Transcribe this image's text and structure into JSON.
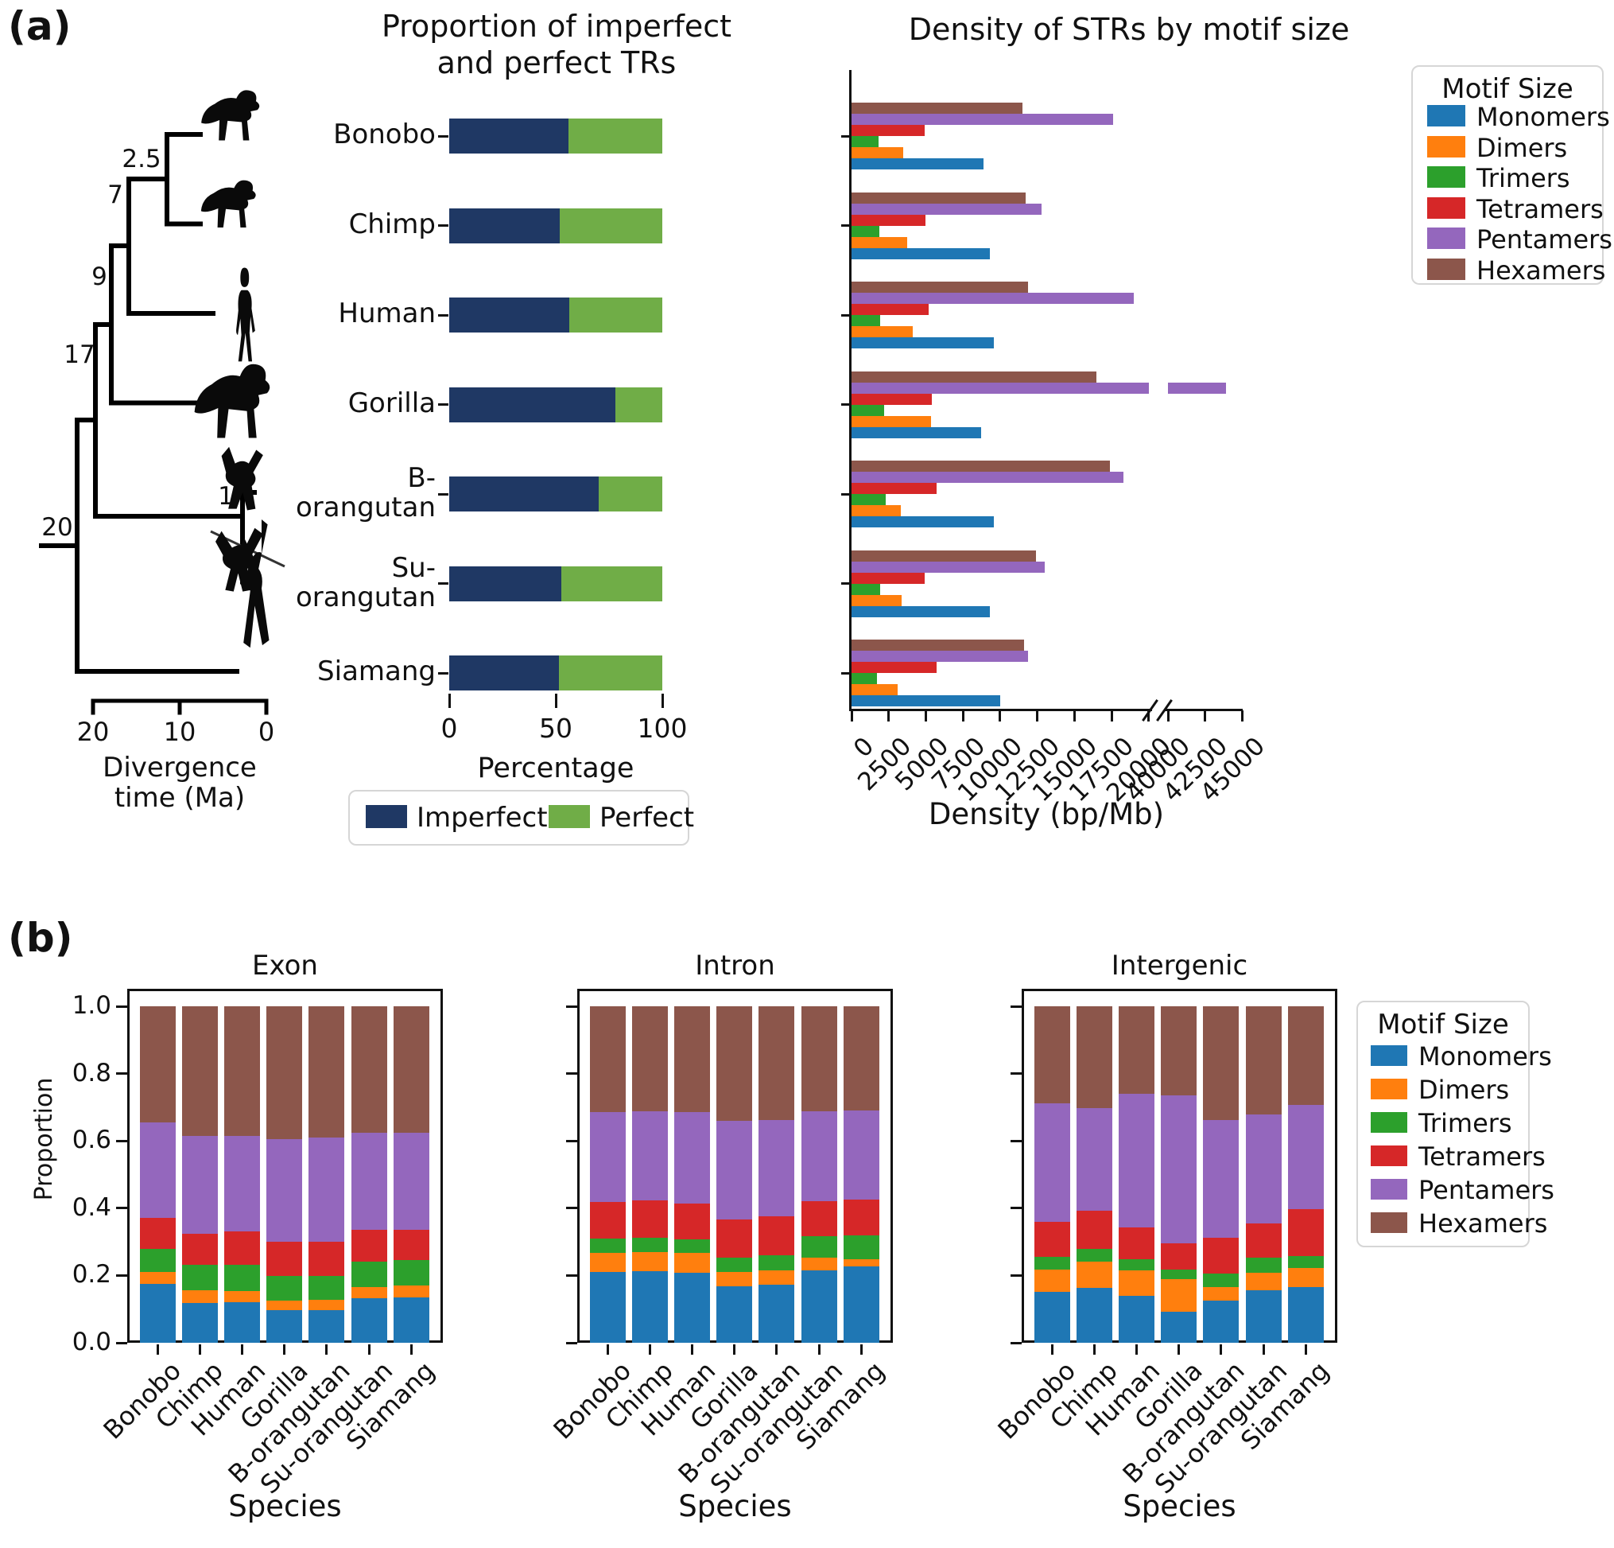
{
  "colors": {
    "monomers": "#1f77b4",
    "dimers": "#ff7f0e",
    "trimers": "#2ca02c",
    "tetramers": "#d62728",
    "pentamers": "#9467bd",
    "hexamers": "#8c564b",
    "imperfect": "#1f3864",
    "perfect": "#70ad47",
    "silhouette": "#0a0a0a"
  },
  "species": [
    "Bonobo",
    "Chimp",
    "Human",
    "Gorilla",
    "B-orangutan",
    "Su-orangutan",
    "Siamang"
  ],
  "motifs": [
    "Monomers",
    "Dimers",
    "Trimers",
    "Tetramers",
    "Pentamers",
    "Hexamers"
  ],
  "panel_a": {
    "label": "(a)",
    "tree": {
      "node_labels": [
        "2.5",
        "7",
        "9",
        "17",
        "20",
        "1"
      ],
      "axis_ticks": [
        "20",
        "10",
        "0"
      ],
      "axis_label_line1": "Divergence",
      "axis_label_line2": "time (Ma)",
      "tip_silhouettes": [
        "bonobo",
        "chimp",
        "human",
        "gorilla",
        "b-orangutan",
        "su-orangutan",
        "siamang"
      ]
    },
    "proportion_chart": {
      "title_line1": "Proportion of imperfect",
      "title_line2": "and perfect TRs",
      "species_display": [
        [
          "Bonobo"
        ],
        [
          "Chimp"
        ],
        [
          "Human"
        ],
        [
          "Gorilla"
        ],
        [
          "B-",
          "orangutan"
        ],
        [
          "Su-",
          "orangutan"
        ],
        [
          "Siamang"
        ]
      ]
    },
    "density_chart": {
      "legend_title": "Motif Size"
    }
  },
  "panel_b": {
    "label": "(b)",
    "legend_title": "Motif Size"
  },
  "chart_data": [
    {
      "id": "proportion_trs",
      "type": "bar",
      "orientation": "horizontal",
      "stacked": true,
      "title": "Proportion of imperfect and perfect TRs",
      "categories": [
        "Bonobo",
        "Chimp",
        "Human",
        "Gorilla",
        "B-orangutan",
        "Su-orangutan",
        "Siamang"
      ],
      "series": [
        {
          "name": "Imperfect",
          "values": [
            55.8,
            52.0,
            56.4,
            78.0,
            70.3,
            52.7,
            51.5
          ]
        },
        {
          "name": "Perfect",
          "values": [
            44.2,
            48.0,
            43.6,
            22.0,
            29.7,
            47.3,
            48.5
          ]
        }
      ],
      "xlabel": "Percentage",
      "xlim": [
        0,
        100
      ],
      "xticks": [
        0,
        50,
        100
      ],
      "legend_position": "bottom"
    },
    {
      "id": "str_density",
      "type": "bar",
      "orientation": "horizontal",
      "stacked": false,
      "title": "Density of STRs by motif size",
      "categories": [
        "Bonobo",
        "Chimp",
        "Human",
        "Gorilla",
        "B-orangutan",
        "Su-orangutan",
        "Siamang"
      ],
      "series": [
        {
          "name": "Monomers",
          "values": [
            8900,
            9300,
            9600,
            8700,
            9600,
            9300,
            10000
          ]
        },
        {
          "name": "Dimers",
          "values": [
            3500,
            3750,
            4100,
            5350,
            3300,
            3350,
            3100
          ]
        },
        {
          "name": "Trimers",
          "values": [
            1800,
            1870,
            1950,
            2200,
            2300,
            1900,
            1700
          ]
        },
        {
          "name": "Tetramers",
          "values": [
            4900,
            4950,
            5200,
            5400,
            5700,
            4900,
            5700
          ]
        },
        {
          "name": "Pentamers",
          "values": [
            17600,
            12800,
            19000,
            43900,
            18300,
            13000,
            11900
          ]
        },
        {
          "name": "Hexamers",
          "values": [
            11500,
            11700,
            11900,
            16500,
            17400,
            12400,
            11600
          ]
        }
      ],
      "xlabel": "Density (bp/Mb)",
      "xticks_main": [
        0,
        2500,
        5000,
        7500,
        10000,
        12500,
        15000,
        17500,
        20000
      ],
      "xticks_after_break": [
        40000,
        42500,
        45000
      ],
      "axis_break": {
        "from": 20000,
        "resume": 40000
      },
      "legend_title": "Motif Size",
      "legend_position": "right"
    },
    {
      "id": "exon",
      "type": "bar",
      "orientation": "vertical",
      "stacked": true,
      "title": "Exon",
      "categories": [
        "Bonobo",
        "Chimp",
        "Human",
        "Gorilla",
        "B-orangutan",
        "Su-orangutan",
        "Siamang"
      ],
      "series": [
        {
          "name": "Monomers",
          "values": [
            0.175,
            0.118,
            0.121,
            0.097,
            0.098,
            0.132,
            0.134
          ]
        },
        {
          "name": "Dimers",
          "values": [
            0.035,
            0.038,
            0.033,
            0.029,
            0.03,
            0.034,
            0.037
          ]
        },
        {
          "name": "Trimers",
          "values": [
            0.07,
            0.076,
            0.078,
            0.072,
            0.07,
            0.075,
            0.074
          ]
        },
        {
          "name": "Tetramers",
          "values": [
            0.09,
            0.093,
            0.1,
            0.102,
            0.102,
            0.094,
            0.09
          ]
        },
        {
          "name": "Pentamers",
          "values": [
            0.285,
            0.29,
            0.283,
            0.305,
            0.31,
            0.29,
            0.29
          ]
        },
        {
          "name": "Hexamers",
          "values": [
            0.345,
            0.385,
            0.385,
            0.395,
            0.39,
            0.375,
            0.375
          ]
        }
      ],
      "ylabel": "Proportion",
      "xlabel": "Species",
      "ylim": [
        0,
        1
      ],
      "yticks": [
        "0.0",
        "0.2",
        "0.4",
        "0.6",
        "0.8",
        "1.0"
      ]
    },
    {
      "id": "intron",
      "type": "bar",
      "orientation": "vertical",
      "stacked": true,
      "title": "Intron",
      "categories": [
        "Bonobo",
        "Chimp",
        "Human",
        "Gorilla",
        "B-orangutan",
        "Su-orangutan",
        "Siamang"
      ],
      "series": [
        {
          "name": "Monomers",
          "values": [
            0.21,
            0.212,
            0.209,
            0.167,
            0.172,
            0.216,
            0.227
          ]
        },
        {
          "name": "Dimers",
          "values": [
            0.057,
            0.057,
            0.058,
            0.043,
            0.042,
            0.037,
            0.021
          ]
        },
        {
          "name": "Trimers",
          "values": [
            0.043,
            0.044,
            0.041,
            0.043,
            0.047,
            0.063,
            0.072
          ]
        },
        {
          "name": "Tetramers",
          "values": [
            0.108,
            0.109,
            0.106,
            0.114,
            0.114,
            0.104,
            0.106
          ]
        },
        {
          "name": "Pentamers",
          "values": [
            0.268,
            0.266,
            0.271,
            0.292,
            0.288,
            0.268,
            0.264
          ]
        },
        {
          "name": "Hexamers",
          "values": [
            0.314,
            0.312,
            0.315,
            0.341,
            0.337,
            0.312,
            0.31
          ]
        }
      ],
      "xlabel": "Species",
      "ylim": [
        0,
        1
      ],
      "yticks": [
        "0.0",
        "0.2",
        "0.4",
        "0.6",
        "0.8",
        "1.0"
      ]
    },
    {
      "id": "intergenic",
      "type": "bar",
      "orientation": "vertical",
      "stacked": true,
      "title": "Intergenic",
      "categories": [
        "Bonobo",
        "Chimp",
        "Human",
        "Gorilla",
        "B-orangutan",
        "Su-orangutan",
        "Siamang"
      ],
      "series": [
        {
          "name": "Monomers",
          "values": [
            0.151,
            0.163,
            0.14,
            0.093,
            0.126,
            0.155,
            0.165
          ]
        },
        {
          "name": "Dimers",
          "values": [
            0.067,
            0.079,
            0.074,
            0.097,
            0.039,
            0.053,
            0.057
          ]
        },
        {
          "name": "Trimers",
          "values": [
            0.037,
            0.036,
            0.035,
            0.028,
            0.041,
            0.044,
            0.035
          ]
        },
        {
          "name": "Tetramers",
          "values": [
            0.104,
            0.114,
            0.094,
            0.078,
            0.106,
            0.103,
            0.141
          ]
        },
        {
          "name": "Pentamers",
          "values": [
            0.353,
            0.306,
            0.398,
            0.44,
            0.349,
            0.324,
            0.31
          ]
        },
        {
          "name": "Hexamers",
          "values": [
            0.288,
            0.302,
            0.259,
            0.264,
            0.339,
            0.321,
            0.292
          ]
        }
      ],
      "xlabel": "Species",
      "ylim": [
        0,
        1
      ],
      "yticks": [
        "0.0",
        "0.2",
        "0.4",
        "0.6",
        "0.8",
        "1.0"
      ]
    }
  ]
}
